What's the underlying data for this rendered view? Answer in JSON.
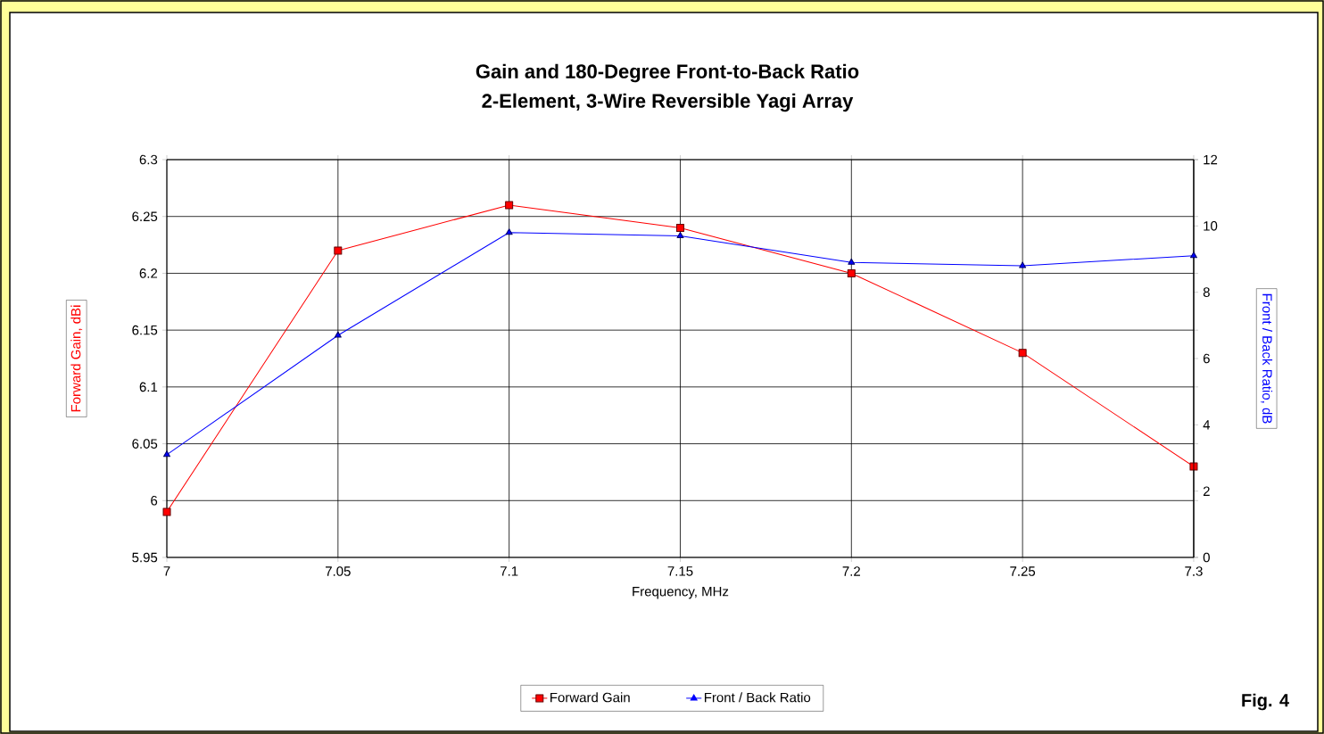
{
  "chart_data": {
    "type": "line",
    "title": "Gain and 180-Degree Front-to-Back Ratio",
    "subtitle": "2-Element, 3-Wire Reversible Yagi Array",
    "xlabel": "Frequency, MHz",
    "ylabel": "Forward Gain, dBi",
    "y2label": "Front / Back Ratio, dB",
    "x": [
      7,
      7.05,
      7.1,
      7.15,
      7.2,
      7.25,
      7.3
    ],
    "series": [
      {
        "name": "Forward Gain",
        "color": "#ff0000",
        "marker": "square",
        "values": [
          5.99,
          6.22,
          6.26,
          6.24,
          6.2,
          6.13,
          6.03
        ]
      },
      {
        "name": "Front / Back Ratio",
        "color": "#0000ff",
        "marker": "triangle",
        "axis": "y2",
        "values": [
          3.1,
          6.7,
          9.8,
          9.7,
          8.9,
          8.8,
          9.1
        ]
      }
    ],
    "xlim": [
      7,
      7.3
    ],
    "xticks": [
      7,
      7.05,
      7.1,
      7.15,
      7.2,
      7.25,
      7.3
    ],
    "ylim": [
      5.95,
      6.3
    ],
    "yticks": [
      5.95,
      6,
      6.05,
      6.1,
      6.15,
      6.2,
      6.25,
      6.3
    ],
    "y2lim": [
      0,
      12
    ],
    "y2ticks": [
      0,
      2,
      4,
      6,
      8,
      10,
      12
    ],
    "grid": true,
    "legend": "bottom",
    "line_style": "solid",
    "annotations": [
      "Fig. 4"
    ]
  }
}
